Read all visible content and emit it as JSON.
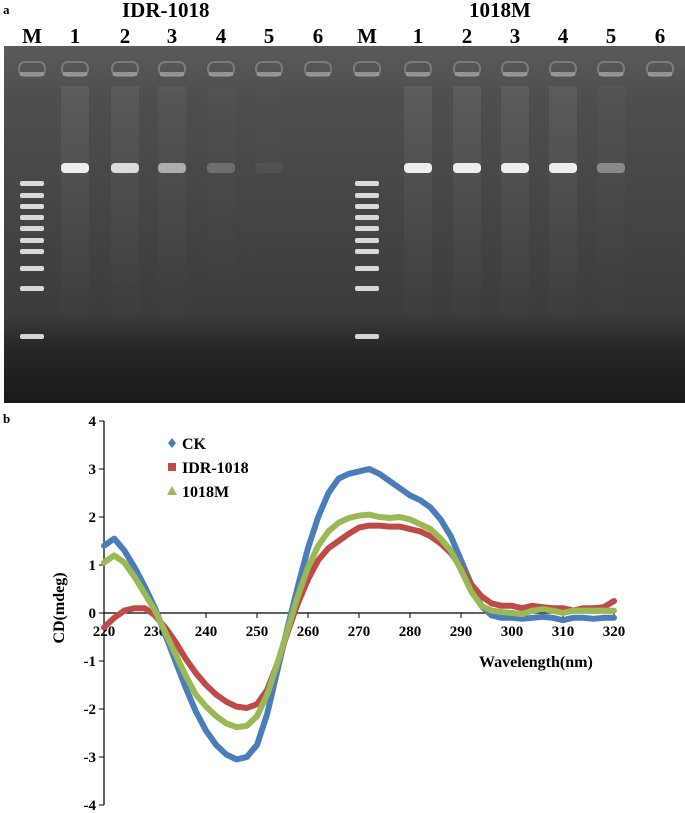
{
  "figure": {
    "panel_a_label": "a",
    "panel_b_label": "b",
    "gel": {
      "groups": [
        {
          "title": "IDR-1018",
          "lanes": [
            "M",
            "1",
            "2",
            "3",
            "4",
            "5",
            "6"
          ],
          "band_intensity": [
            1,
            0.95,
            0.8,
            0.55,
            0.2,
            0.05,
            0
          ]
        },
        {
          "title": "1018M",
          "lanes": [
            "M",
            "1",
            "2",
            "3",
            "4",
            "5",
            "6"
          ],
          "band_intensity": [
            1,
            0.95,
            0.95,
            0.95,
            0.9,
            0.35,
            0
          ]
        }
      ],
      "colors": {
        "background": "#3a3a3a",
        "band": "#ffffff"
      }
    }
  },
  "chart_data": {
    "type": "line",
    "title": "",
    "xlabel": "Wavelength(nm)",
    "ylabel": "CD(mdeg)",
    "xlim": [
      220,
      320
    ],
    "ylim": [
      -4,
      4
    ],
    "x_ticks": [
      220,
      230,
      240,
      250,
      260,
      270,
      280,
      290,
      300,
      310,
      320
    ],
    "y_ticks": [
      4,
      3,
      2,
      1,
      0,
      -1,
      -2,
      -3,
      -4
    ],
    "legend_position": "top-left",
    "series": [
      {
        "name": "CK",
        "color": "#4a7ebb",
        "marker": "diamond",
        "x": [
          220,
          222,
          224,
          226,
          228,
          230,
          232,
          234,
          236,
          238,
          240,
          242,
          244,
          246,
          248,
          250,
          252,
          254,
          256,
          258,
          260,
          262,
          264,
          266,
          268,
          270,
          272,
          274,
          276,
          278,
          280,
          282,
          284,
          286,
          288,
          290,
          292,
          294,
          296,
          298,
          300,
          302,
          304,
          306,
          308,
          310,
          312,
          314,
          316,
          318,
          320
        ],
        "y": [
          1.4,
          1.55,
          1.3,
          0.95,
          0.55,
          0.1,
          -0.45,
          -1.0,
          -1.55,
          -2.05,
          -2.45,
          -2.75,
          -2.95,
          -3.05,
          -3.0,
          -2.75,
          -2.1,
          -1.2,
          -0.3,
          0.55,
          1.35,
          2.0,
          2.5,
          2.8,
          2.9,
          2.95,
          3.0,
          2.9,
          2.75,
          2.6,
          2.45,
          2.35,
          2.2,
          1.95,
          1.6,
          1.1,
          0.6,
          0.15,
          -0.05,
          -0.1,
          -0.1,
          -0.12,
          -0.1,
          -0.08,
          -0.1,
          -0.15,
          -0.1,
          -0.1,
          -0.12,
          -0.1,
          -0.1
        ]
      },
      {
        "name": "IDR-1018",
        "color": "#be4b48",
        "marker": "square",
        "x": [
          220,
          222,
          224,
          226,
          228,
          230,
          232,
          234,
          236,
          238,
          240,
          242,
          244,
          246,
          248,
          250,
          252,
          254,
          256,
          258,
          260,
          262,
          264,
          266,
          268,
          270,
          272,
          274,
          276,
          278,
          280,
          282,
          284,
          286,
          288,
          290,
          292,
          294,
          296,
          298,
          300,
          302,
          304,
          306,
          308,
          310,
          312,
          314,
          316,
          318,
          320
        ],
        "y": [
          -0.3,
          -0.1,
          0.05,
          0.1,
          0.1,
          -0.05,
          -0.3,
          -0.6,
          -0.95,
          -1.25,
          -1.5,
          -1.7,
          -1.85,
          -1.95,
          -1.98,
          -1.9,
          -1.6,
          -1.05,
          -0.4,
          0.2,
          0.7,
          1.1,
          1.35,
          1.5,
          1.65,
          1.78,
          1.82,
          1.82,
          1.8,
          1.8,
          1.75,
          1.7,
          1.6,
          1.45,
          1.25,
          0.95,
          0.6,
          0.35,
          0.2,
          0.15,
          0.15,
          0.1,
          0.15,
          0.12,
          0.1,
          0.1,
          0.05,
          0.1,
          0.1,
          0.12,
          0.25
        ]
      },
      {
        "name": "1018M",
        "color": "#98b954",
        "marker": "triangle",
        "x": [
          220,
          222,
          224,
          226,
          228,
          230,
          232,
          234,
          236,
          238,
          240,
          242,
          244,
          246,
          248,
          250,
          252,
          254,
          256,
          258,
          260,
          262,
          264,
          266,
          268,
          270,
          272,
          274,
          276,
          278,
          280,
          282,
          284,
          286,
          288,
          290,
          292,
          294,
          296,
          298,
          300,
          302,
          304,
          306,
          308,
          310,
          312,
          314,
          316,
          318,
          320
        ],
        "y": [
          1.05,
          1.2,
          1.05,
          0.75,
          0.4,
          0.05,
          -0.4,
          -0.85,
          -1.3,
          -1.7,
          -1.95,
          -2.15,
          -2.3,
          -2.38,
          -2.35,
          -2.15,
          -1.7,
          -1.05,
          -0.35,
          0.35,
          0.95,
          1.4,
          1.7,
          1.88,
          1.98,
          2.03,
          2.05,
          2.0,
          1.98,
          2.0,
          1.95,
          1.85,
          1.75,
          1.55,
          1.3,
          0.9,
          0.45,
          0.15,
          0.05,
          0.02,
          0.0,
          -0.02,
          0.05,
          0.08,
          0.05,
          0.0,
          0.05,
          0.05,
          0.05,
          0.05,
          0.05
        ]
      }
    ]
  }
}
